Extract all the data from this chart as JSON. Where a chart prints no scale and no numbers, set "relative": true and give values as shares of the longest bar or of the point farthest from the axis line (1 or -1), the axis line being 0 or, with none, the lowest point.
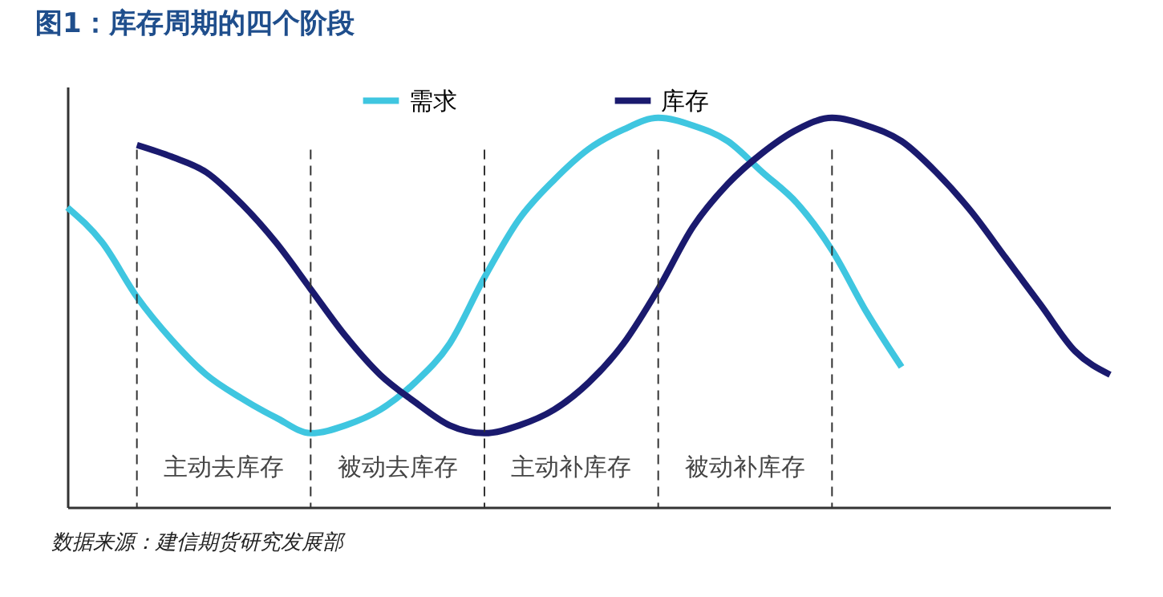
{
  "chart_data": {
    "type": "line",
    "title": "图1：库存周期的四个阶段",
    "relative": true,
    "categories": [
      null,
      null,
      null,
      null,
      null,
      null,
      null,
      null,
      null,
      null,
      null,
      null,
      null,
      null,
      null,
      null,
      null,
      null,
      null,
      null,
      null,
      null,
      null,
      null,
      null,
      null,
      null,
      null,
      null,
      null,
      null
    ],
    "series": [
      {
        "name": "需求",
        "color": "#3fc6e0",
        "values": [
          0.77,
          0.68,
          0.54,
          0.43,
          0.34,
          0.28,
          0.23,
          0.19,
          0.21,
          0.25,
          0.32,
          0.42,
          0.59,
          0.74,
          0.84,
          0.92,
          0.97,
          1.0,
          0.98,
          0.94,
          0.86,
          0.78,
          0.66,
          0.5,
          0.36,
          null,
          null,
          null,
          null,
          null,
          null
        ]
      },
      {
        "name": "库存",
        "color": "#1a1a6e",
        "values": [
          null,
          null,
          0.93,
          0.9,
          0.86,
          0.78,
          0.68,
          0.56,
          0.44,
          0.34,
          0.27,
          0.21,
          0.19,
          0.21,
          0.25,
          0.32,
          0.42,
          0.56,
          0.72,
          0.83,
          0.91,
          0.97,
          1.0,
          0.98,
          0.94,
          0.86,
          0.76,
          0.64,
          0.52,
          0.4,
          0.34
        ]
      }
    ],
    "annotations": [
      "主动去库存",
      "被动去库存",
      "主动补库存",
      "被动补库存",
      "数据来源：建信期货研究发展部"
    ],
    "legend": "top",
    "grid": "x",
    "marker": "none",
    "line_style": "solid"
  }
}
